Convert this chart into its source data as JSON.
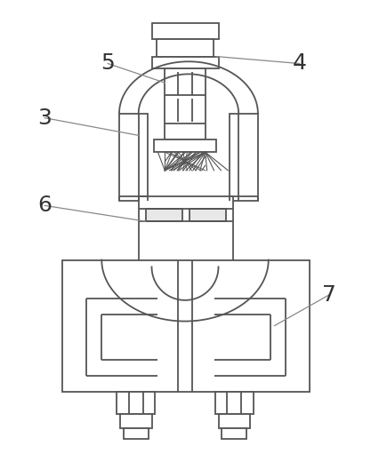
{
  "background_color": "#ffffff",
  "line_color": "#555555",
  "figsize": [
    4.17,
    5.11
  ],
  "dpi": 100,
  "label_fontsize": 18,
  "label_color": "#333333"
}
